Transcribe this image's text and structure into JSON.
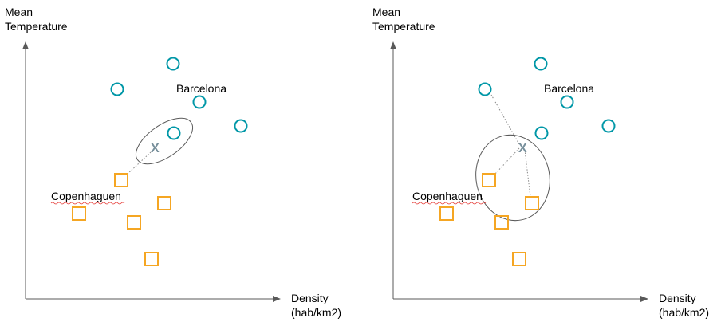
{
  "colors": {
    "circle": "#0097a7",
    "square": "#f5a623",
    "axis": "#595959",
    "query": "#78909c",
    "ellipse": "#595959",
    "spell_underline": "#e53935"
  },
  "panels": [
    {
      "y_axis_label": [
        "Mean",
        "Temperature"
      ],
      "x_axis_label": [
        "Density",
        "(hab/km2)"
      ],
      "barcelona_label": "Barcelona",
      "copenhagen_label": "Copenhaguen",
      "query_label": "X",
      "k": 1
    },
    {
      "y_axis_label": [
        "Mean",
        "Temperature"
      ],
      "x_axis_label": [
        "Density",
        "(hab/km2)"
      ],
      "barcelona_label": "Barcelona",
      "copenhagen_label": "Copenhaguen",
      "query_label": "X",
      "k": 3
    }
  ]
}
